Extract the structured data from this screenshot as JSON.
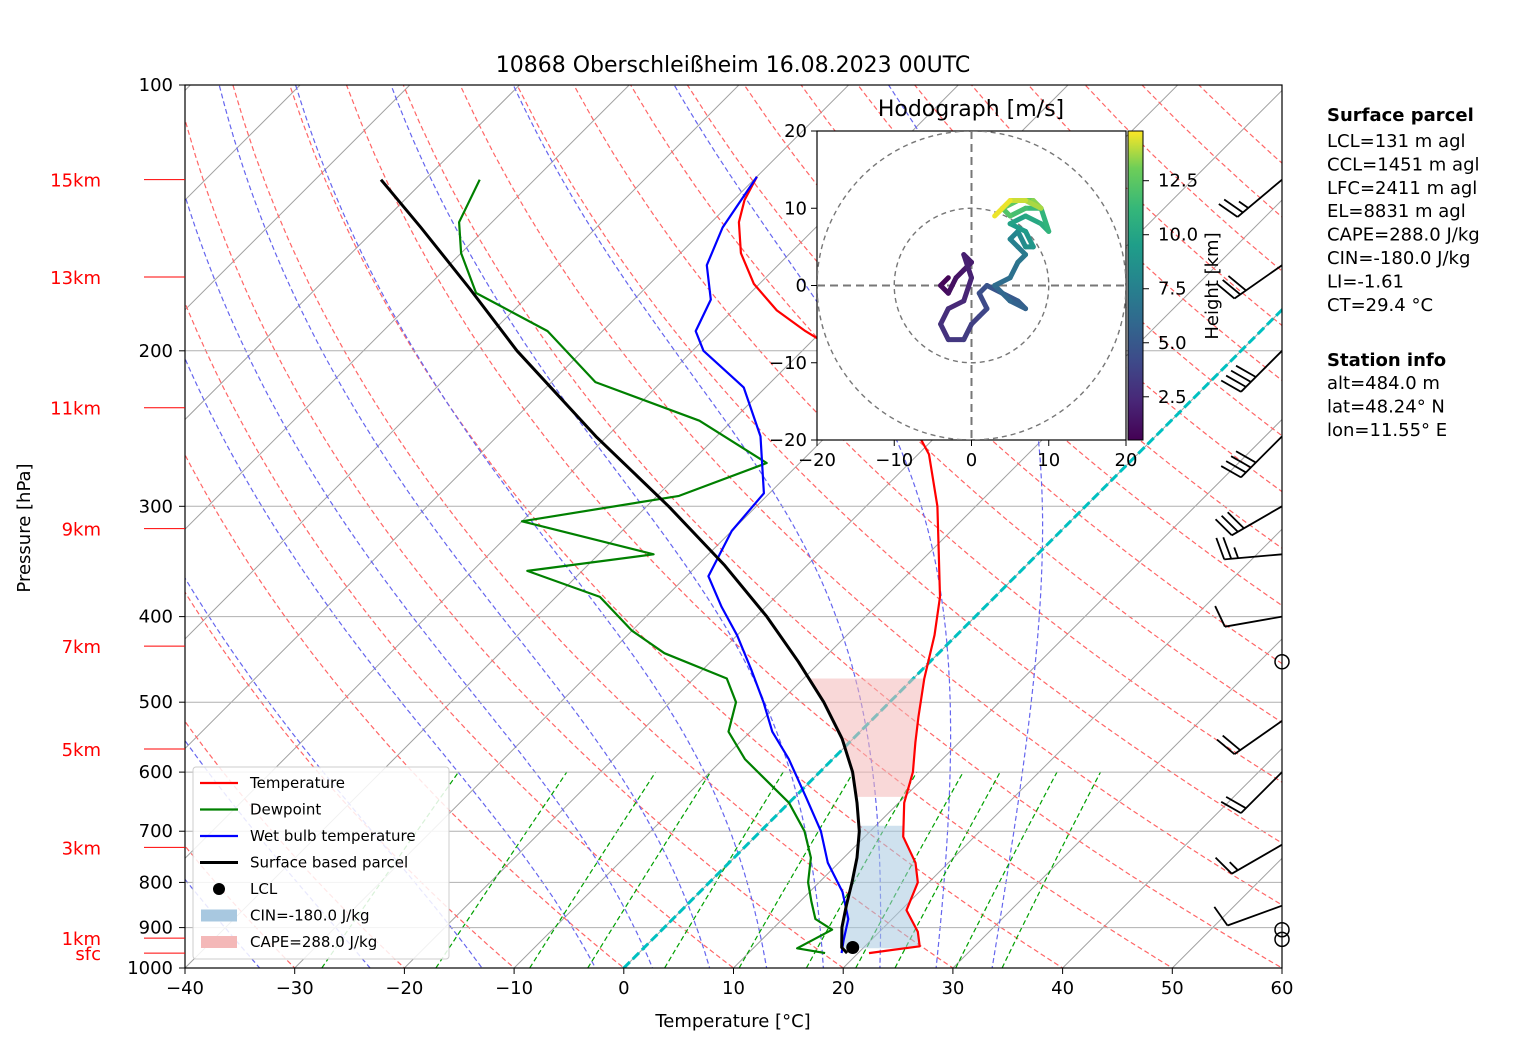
{
  "chart_data": [
    {
      "type": "line",
      "title": "10868 Oberschleißheim 16.08.2023 00UTC",
      "xlabel": "Temperature [°C]",
      "ylabel": "Pressure [hPa]",
      "xlim": [
        -40,
        60
      ],
      "ylim": [
        1000,
        100
      ],
      "y_scale": "log",
      "skew": "skew-T",
      "x_ticks": [
        "−40",
        "−30",
        "−20",
        "−10",
        "0",
        "10",
        "20",
        "30",
        "40",
        "50",
        "60"
      ],
      "y_ticks": [
        "100",
        "200",
        "300",
        "400",
        "500",
        "600",
        "700",
        "800",
        "900",
        "1000"
      ],
      "height_markers": [
        {
          "label": "15km",
          "p": 128
        },
        {
          "label": "13km",
          "p": 165
        },
        {
          "label": "11km",
          "p": 232
        },
        {
          "label": "9km",
          "p": 318
        },
        {
          "label": "7km",
          "p": 432
        },
        {
          "label": "5km",
          "p": 565
        },
        {
          "label": "3km",
          "p": 730
        },
        {
          "label": "1km",
          "p": 925
        },
        {
          "label": "sfc",
          "p": 962
        }
      ],
      "grid": true,
      "legend_position": "lower-left",
      "series": [
        {
          "name": "Temperature",
          "color": "#ff0000",
          "points": [
            [
              21.0,
              962
            ],
            [
              25.0,
              945
            ],
            [
              23.5,
              910
            ],
            [
              20.5,
              860
            ],
            [
              19.0,
              800
            ],
            [
              17.0,
              760
            ],
            [
              13.5,
              710
            ],
            [
              10.5,
              650
            ],
            [
              8.5,
              600
            ],
            [
              6.0,
              555
            ],
            [
              4.0,
              520
            ],
            [
              1.0,
              470
            ],
            [
              -2.0,
              420
            ],
            [
              -5.0,
              380
            ],
            [
              -9.0,
              340
            ],
            [
              -13.5,
              300
            ],
            [
              -19.0,
              262
            ],
            [
              -26.0,
              230
            ],
            [
              -34.5,
              205
            ],
            [
              -41.5,
              190
            ],
            [
              -46.0,
              180
            ],
            [
              -50.5,
              168
            ],
            [
              -54.5,
              155
            ],
            [
              -57.5,
              143
            ],
            [
              -59.0,
              135
            ],
            [
              -60.0,
              127
            ]
          ]
        },
        {
          "name": "Dewpoint",
          "color": "#008000",
          "points": [
            [
              17.0,
              962
            ],
            [
              14.0,
              950
            ],
            [
              15.5,
              905
            ],
            [
              13.0,
              880
            ],
            [
              11.0,
              840
            ],
            [
              9.0,
              800
            ],
            [
              7.0,
              750
            ],
            [
              4.0,
              700
            ],
            [
              0.0,
              650
            ],
            [
              -8.0,
              580
            ],
            [
              -12.0,
              540
            ],
            [
              -14.0,
              500
            ],
            [
              -17.0,
              470
            ],
            [
              -25.0,
              440
            ],
            [
              -30.0,
              415
            ],
            [
              -36.0,
              380
            ],
            [
              -45.0,
              355
            ],
            [
              -35.0,
              340
            ],
            [
              -50.0,
              312
            ],
            [
              -38.0,
              292
            ],
            [
              -33.0,
              268
            ],
            [
              -43.0,
              240
            ],
            [
              -56.0,
              217
            ],
            [
              -65.0,
              190
            ],
            [
              -75.0,
              172
            ],
            [
              -80.0,
              155
            ],
            [
              -83.0,
              143
            ],
            [
              -85.0,
              128
            ]
          ]
        },
        {
          "name": "Wet bulb temperature",
          "color": "#0000ff",
          "points": [
            [
              18.5,
              962
            ],
            [
              17.5,
              930
            ],
            [
              16.0,
              880
            ],
            [
              13.0,
              820
            ],
            [
              9.0,
              760
            ],
            [
              5.5,
              700
            ],
            [
              1.0,
              640
            ],
            [
              -4.0,
              580
            ],
            [
              -8.0,
              540
            ],
            [
              -11.5,
              500
            ],
            [
              -15.5,
              460
            ],
            [
              -20.0,
              420
            ],
            [
              -24.0,
              390
            ],
            [
              -28.0,
              360
            ],
            [
              -30.0,
              320
            ],
            [
              -30.5,
              290
            ],
            [
              -36.0,
              250
            ],
            [
              -42.0,
              220
            ],
            [
              -49.0,
              200
            ],
            [
              -51.5,
              190
            ],
            [
              -53.0,
              175
            ],
            [
              -56.5,
              160
            ],
            [
              -58.5,
              145
            ],
            [
              -60.0,
              127
            ]
          ]
        },
        {
          "name": "Surface based parcel",
          "color": "#000000",
          "points": [
            [
              19.0,
              962
            ],
            [
              18.0,
              948
            ],
            [
              16.2,
              900
            ],
            [
              14.6,
              850
            ],
            [
              13.0,
              800
            ],
            [
              11.2,
              750
            ],
            [
              9.0,
              700
            ],
            [
              6.2,
              650
            ],
            [
              3.0,
              600
            ],
            [
              -1.0,
              550
            ],
            [
              -6.0,
              500
            ],
            [
              -12.0,
              450
            ],
            [
              -19.0,
              400
            ],
            [
              -27.5,
              350
            ],
            [
              -38.0,
              300
            ],
            [
              -51.0,
              250
            ],
            [
              -66.0,
              200
            ],
            [
              -76.0,
              170
            ],
            [
              -86.0,
              145
            ],
            [
              -94.0,
              128
            ]
          ]
        }
      ],
      "lcl": {
        "name": "LCL",
        "t": 19.0,
        "p": 948
      },
      "legend": [
        {
          "name": "Temperature",
          "color": "#ff0000",
          "kind": "line"
        },
        {
          "name": "Dewpoint",
          "color": "#008000",
          "kind": "line"
        },
        {
          "name": "Wet bulb temperature",
          "color": "#0000ff",
          "kind": "line"
        },
        {
          "name": "Surface based parcel",
          "color": "#000000",
          "kind": "line"
        },
        {
          "name": "LCL",
          "color": "#000000",
          "kind": "marker"
        },
        {
          "name": "CIN=-180.0 J/kg",
          "color": "#a8c8e0",
          "kind": "patch"
        },
        {
          "name": "CAPE=288.0 J/kg",
          "color": "#f4b8b8",
          "kind": "patch"
        }
      ]
    },
    {
      "type": "scatter",
      "title": "Hodograph [m/s]",
      "xlim": [
        -20,
        20
      ],
      "ylim": [
        -20,
        20
      ],
      "x_ticks": [
        "−20",
        "−10",
        "0",
        "10",
        "20"
      ],
      "y_ticks": [
        "−20",
        "−10",
        "0",
        "10",
        "20"
      ],
      "rings": [
        10,
        20
      ],
      "colorbar_label": "Height [km]",
      "colorbar_ticks": [
        "2.5",
        "5.0",
        "7.5",
        "10.0",
        "12.5"
      ],
      "colorbar_range": [
        0.5,
        14.8
      ],
      "points": [
        [
          -3,
          1,
          0.5
        ],
        [
          -4,
          0,
          0.8
        ],
        [
          -3,
          -1,
          1.0
        ],
        [
          -2,
          1,
          1.3
        ],
        [
          -1,
          2,
          1.5
        ],
        [
          0,
          3,
          1.7
        ],
        [
          -1,
          4,
          1.9
        ],
        [
          0,
          1,
          2.1
        ],
        [
          -1,
          -2,
          2.3
        ],
        [
          -3,
          -3,
          2.5
        ],
        [
          -4,
          -5,
          2.8
        ],
        [
          -3,
          -7,
          3.0
        ],
        [
          -1,
          -7,
          3.3
        ],
        [
          0,
          -5,
          3.5
        ],
        [
          1,
          -4,
          3.7
        ],
        [
          2,
          -3,
          4.0
        ],
        [
          1,
          -1,
          4.3
        ],
        [
          2,
          0,
          4.6
        ],
        [
          4,
          -1,
          4.9
        ],
        [
          6,
          -2,
          5.2
        ],
        [
          7,
          -3,
          5.5
        ],
        [
          5,
          -2,
          5.8
        ],
        [
          3,
          0,
          6.1
        ],
        [
          5,
          1,
          6.4
        ],
        [
          6,
          3,
          6.7
        ],
        [
          7,
          4,
          7.0
        ],
        [
          6,
          5,
          7.3
        ],
        [
          5,
          6,
          7.6
        ],
        [
          6,
          7,
          8.0
        ],
        [
          7,
          5,
          8.4
        ],
        [
          8,
          5,
          8.8
        ],
        [
          7,
          7,
          9.2
        ],
        [
          5,
          8,
          9.6
        ],
        [
          7,
          9,
          10.0
        ],
        [
          9,
          8,
          10.4
        ],
        [
          10,
          7,
          10.8
        ],
        [
          9,
          10,
          11.2
        ],
        [
          7,
          10,
          11.6
        ],
        [
          5,
          9,
          12.0
        ],
        [
          4,
          10,
          12.4
        ],
        [
          6,
          11,
          12.8
        ],
        [
          8,
          11,
          13.2
        ],
        [
          9,
          10,
          13.6
        ],
        [
          7,
          11,
          14.0
        ],
        [
          5,
          11,
          14.4
        ],
        [
          3,
          9,
          14.8
        ]
      ]
    }
  ],
  "surface_parcel": {
    "heading": "Surface parcel",
    "lines": [
      "LCL=131 m agl",
      "CCL=1451 m agl",
      "LFC=2411 m agl",
      "EL=8831 m agl",
      "CAPE=288.0 J/kg",
      "CIN=-180.0 J/kg",
      "LI=-1.61",
      "CT=29.4 °C"
    ]
  },
  "station_info": {
    "heading": "Station info",
    "lines": [
      "alt=484.0 m",
      "lat=48.24° N",
      "lon=11.55° E"
    ]
  },
  "wind_barbs": [
    {
      "p": 928,
      "calm": true
    },
    {
      "p": 905,
      "calm": true
    },
    {
      "p": 850,
      "dir": 250,
      "spd": 12
    },
    {
      "p": 725,
      "dir": 240,
      "spd": 15
    },
    {
      "p": 600,
      "dir": 225,
      "spd": 20
    },
    {
      "p": 525,
      "dir": 235,
      "spd": 22
    },
    {
      "p": 450,
      "calm": true
    },
    {
      "p": 400,
      "dir": 260,
      "spd": 12
    },
    {
      "p": 340,
      "dir": 265,
      "spd": 25
    },
    {
      "p": 300,
      "dir": 240,
      "spd": 30
    },
    {
      "p": 250,
      "dir": 225,
      "spd": 40
    },
    {
      "p": 200,
      "dir": 225,
      "spd": 40
    },
    {
      "p": 160,
      "dir": 235,
      "spd": 30
    },
    {
      "p": 128,
      "dir": 230,
      "spd": 25
    }
  ],
  "colors": {
    "dry_adiabats": "#ff6666",
    "moist_adiabats": "#6666ee",
    "mixing_ratio": "#00a000",
    "isotherms": "#a0a0a0",
    "zero_isotherm": "#00c0c0",
    "height_labels": "#ff0000",
    "cape_fill": "#f4b8b8",
    "cin_fill": "#a8c8e0"
  }
}
